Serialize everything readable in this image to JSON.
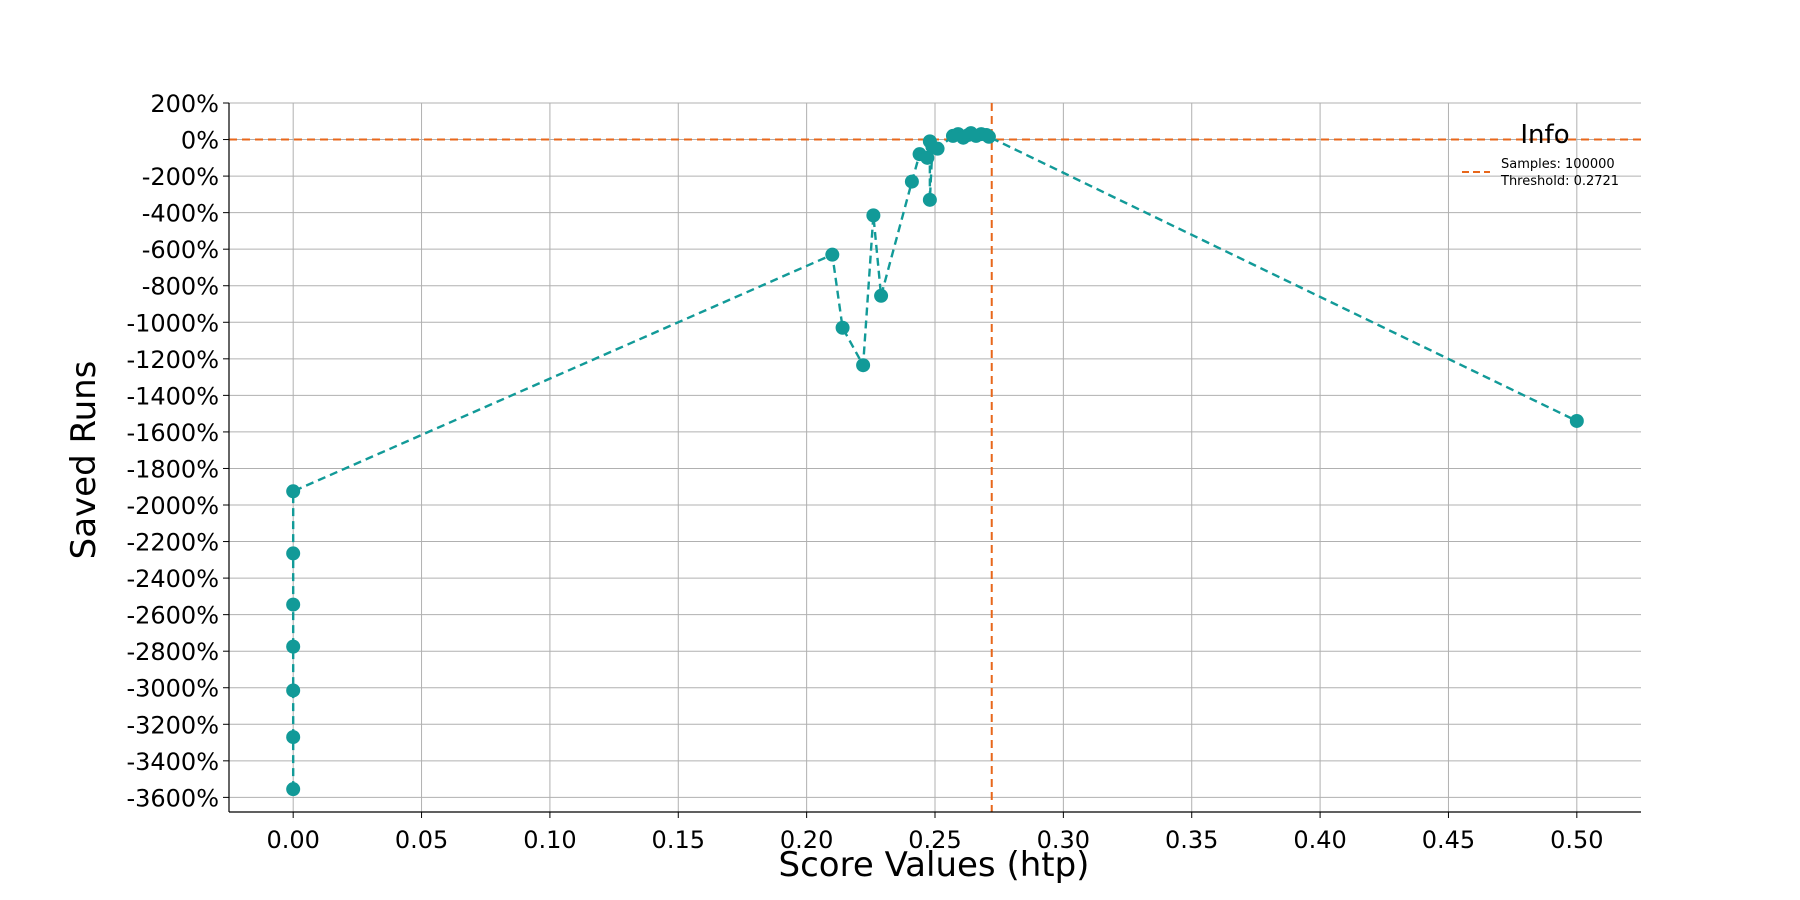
{
  "chart_data": {
    "type": "line",
    "title": "",
    "xlabel": "Score Values (htp)",
    "ylabel": "Saved Runs",
    "xlim": [
      -0.025,
      0.525
    ],
    "ylim": [
      -3680,
      200
    ],
    "xticks": [
      0.0,
      0.05,
      0.1,
      0.15,
      0.2,
      0.25,
      0.3,
      0.35,
      0.4,
      0.45,
      0.5
    ],
    "xtick_labels": [
      "0.00",
      "0.05",
      "0.10",
      "0.15",
      "0.20",
      "0.25",
      "0.30",
      "0.35",
      "0.40",
      "0.45",
      "0.50"
    ],
    "yticks": [
      200,
      0,
      -200,
      -400,
      -600,
      -800,
      -1000,
      -1200,
      -1400,
      -1600,
      -1800,
      -2000,
      -2200,
      -2400,
      -2600,
      -2800,
      -3000,
      -3200,
      -3400,
      -3600
    ],
    "ytick_labels": [
      "200%",
      "0%",
      "-200%",
      "-400%",
      "-600%",
      "-800%",
      "-1000%",
      "-1200%",
      "-1400%",
      "-1600%",
      "-1800%",
      "-2000%",
      "-2200%",
      "-2400%",
      "-2600%",
      "-2800%",
      "-3000%",
      "-3200%",
      "-3400%",
      "-3600%"
    ],
    "grid": true,
    "series": [
      {
        "name": "Saved Runs",
        "color": "#129a98",
        "style": "dashed",
        "marker": "circle",
        "x": [
          0.0,
          0.0,
          0.0,
          0.0,
          0.0,
          0.0,
          0.0,
          0.21,
          0.214,
          0.222,
          0.226,
          0.229,
          0.241,
          0.244,
          0.247,
          0.248,
          0.248,
          0.249,
          0.251,
          0.257,
          0.259,
          0.261,
          0.263,
          0.264,
          0.266,
          0.268,
          0.27,
          0.271,
          0.5
        ],
        "y": [
          -3555,
          -3270,
          -3015,
          -2775,
          -2545,
          -2265,
          -1925,
          -630,
          -1030,
          -1235,
          -415,
          -855,
          -230,
          -80,
          -100,
          -10,
          -330,
          -40,
          -50,
          20,
          30,
          10,
          25,
          35,
          20,
          30,
          25,
          15,
          -1540
        ]
      }
    ],
    "threshold_lines": {
      "color": "#e8671b",
      "x": 0.2721,
      "y": 0
    },
    "legend": {
      "position": "top-right",
      "title": "Info",
      "entries": [
        "Samples: 100000",
        "Threshold: 0.2721"
      ]
    }
  }
}
